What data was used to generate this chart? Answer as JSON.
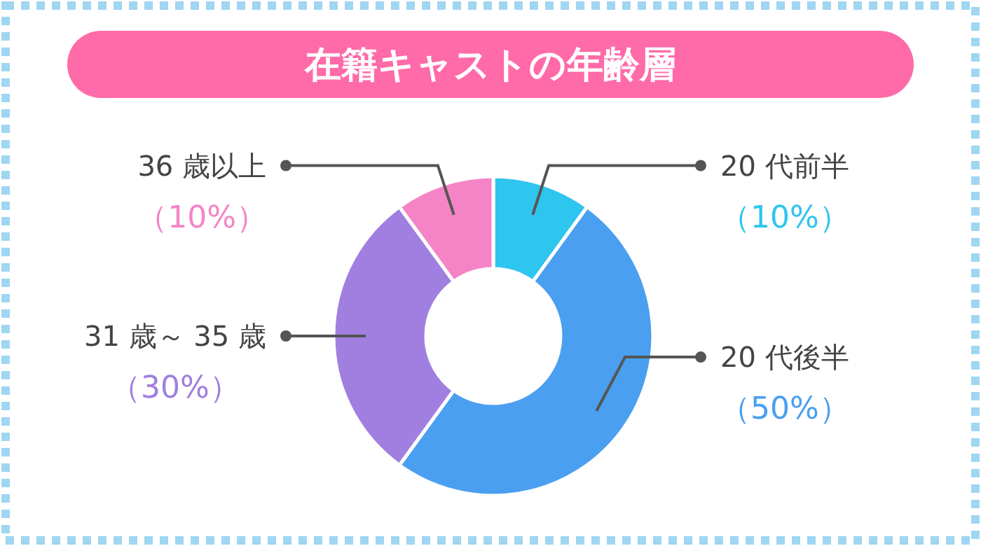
{
  "chart_data": {
    "type": "donut",
    "title": "在籍キャストの年齢層",
    "categories": [
      "20 代前半",
      "20 代後半",
      "31 歳～ 35 歳",
      "36 歳以上"
    ],
    "values": [
      10,
      50,
      30,
      10
    ],
    "value_labels": [
      "（10%）",
      "（50%）",
      "（30%）",
      "（10%）"
    ],
    "colors": [
      "#2ec5ee",
      "#4a9ff0",
      "#a07fe0",
      "#f584c6"
    ]
  }
}
